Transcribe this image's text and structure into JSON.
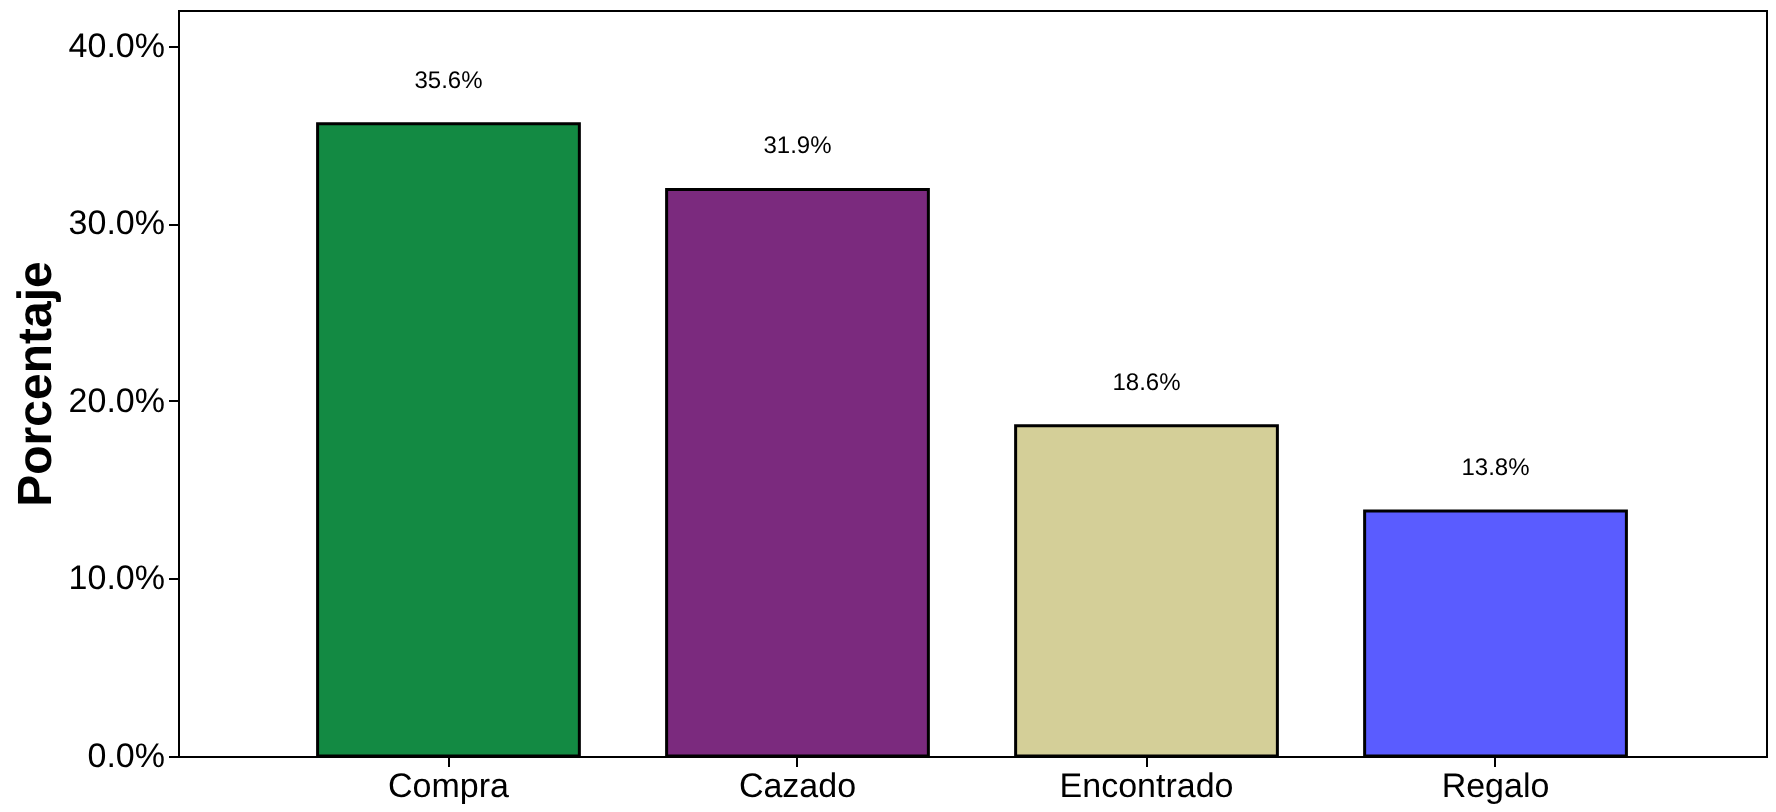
{
  "chart_data": {
    "type": "bar",
    "ylabel": "Porcentaje",
    "categories": [
      "Compra",
      "Cazado",
      "Encontrado",
      "Regalo"
    ],
    "values": [
      35.6,
      31.9,
      18.6,
      13.8
    ],
    "colors": [
      "#138a43",
      "#7b2a7e",
      "#d4cf98",
      "#5a5cff"
    ],
    "value_labels": [
      "35.6%",
      "31.9%",
      "18.6%",
      "13.8%"
    ],
    "ylim": [
      0,
      42
    ],
    "yticks": [
      {
        "value": 0,
        "label": "0.0%"
      },
      {
        "value": 10,
        "label": "10.0%"
      },
      {
        "value": 20,
        "label": "20.0%"
      },
      {
        "value": 30,
        "label": "30.0%"
      },
      {
        "value": 40,
        "label": "40.0%"
      }
    ],
    "grid": false
  }
}
